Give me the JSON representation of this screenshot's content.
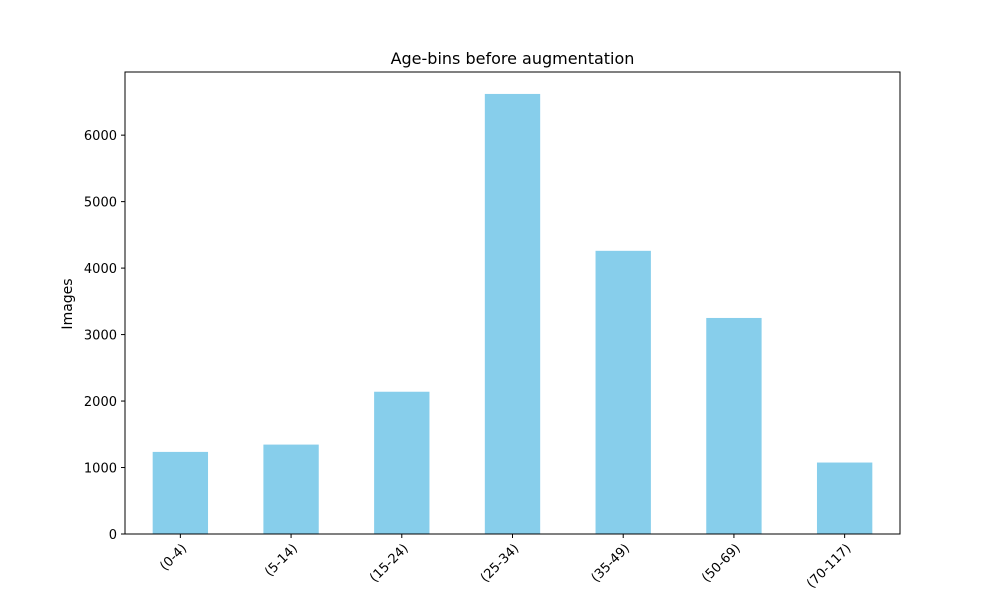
{
  "chart_data": {
    "type": "bar",
    "title": "Age-bins before augmentation",
    "xlabel": "",
    "ylabel": "Images",
    "categories": [
      "(0-4)",
      "(5-14)",
      "(15-24)",
      "(25-34)",
      "(35-49)",
      "(50-69)",
      "(70-117)"
    ],
    "values": [
      1235,
      1345,
      2140,
      6620,
      4260,
      3250,
      1075
    ],
    "ylim": [
      0,
      6950
    ],
    "yticks": [
      0,
      1000,
      2000,
      3000,
      4000,
      5000,
      6000
    ],
    "grid": false,
    "legend": "none",
    "bar_color": "#87CEEB"
  }
}
